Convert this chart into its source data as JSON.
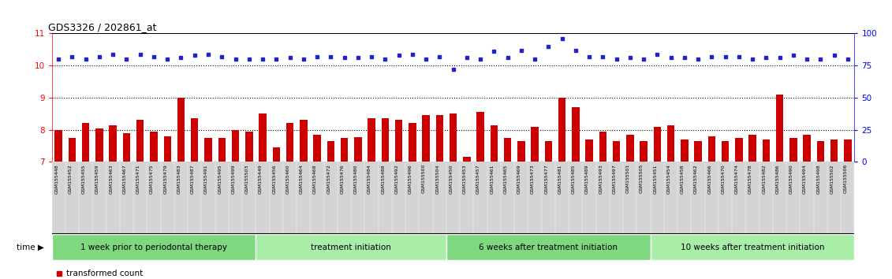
{
  "title": "GDS3326 / 202861_at",
  "gsm_labels": [
    "GSM155448",
    "GSM155452",
    "GSM155455",
    "GSM155459",
    "GSM155463",
    "GSM155467",
    "GSM155471",
    "GSM155475",
    "GSM155479",
    "GSM155483",
    "GSM155487",
    "GSM155491",
    "GSM155495",
    "GSM155499",
    "GSM155503",
    "GSM155449",
    "GSM155456",
    "GSM155460",
    "GSM155464",
    "GSM155468",
    "GSM155472",
    "GSM155476",
    "GSM155480",
    "GSM155484",
    "GSM155488",
    "GSM155492",
    "GSM155496",
    "GSM155500",
    "GSM155504",
    "GSM155450",
    "GSM155453",
    "GSM155457",
    "GSM155461",
    "GSM155465",
    "GSM155469",
    "GSM155473",
    "GSM155477",
    "GSM155481",
    "GSM155485",
    "GSM155489",
    "GSM155493",
    "GSM155497",
    "GSM155501",
    "GSM155505",
    "GSM155451",
    "GSM155454",
    "GSM155458",
    "GSM155462",
    "GSM155466",
    "GSM155470",
    "GSM155474",
    "GSM155478",
    "GSM155482",
    "GSM155486",
    "GSM155490",
    "GSM155494",
    "GSM155498",
    "GSM155502",
    "GSM155506"
  ],
  "bar_values": [
    8.0,
    7.75,
    8.2,
    8.05,
    8.15,
    7.9,
    8.3,
    7.95,
    7.8,
    9.0,
    8.35,
    7.75,
    7.75,
    8.0,
    7.95,
    8.5,
    7.45,
    8.2,
    8.3,
    7.85,
    7.65,
    7.75,
    7.78,
    8.35,
    8.35,
    8.3,
    8.2,
    8.45,
    8.45,
    8.5,
    7.15,
    8.55,
    8.15,
    7.75,
    7.65,
    8.1,
    7.65,
    9.0,
    8.7,
    7.7,
    7.95,
    7.65,
    7.85,
    7.65,
    8.1,
    8.15,
    7.7,
    7.65,
    7.8,
    7.65,
    7.75,
    7.85,
    7.7,
    9.1,
    7.75,
    7.85,
    7.65,
    7.7,
    7.7
  ],
  "percentile_values_pct": [
    80,
    82,
    80,
    82,
    84,
    80,
    84,
    82,
    80,
    81,
    83,
    84,
    82,
    80,
    80,
    80,
    80,
    81,
    80,
    82,
    82,
    81,
    81,
    82,
    80,
    83,
    84,
    80,
    82,
    72,
    81,
    80,
    86,
    81,
    87,
    80,
    90,
    96,
    87,
    82,
    82,
    80,
    81,
    80,
    84,
    81,
    81,
    80,
    82,
    82,
    82,
    80,
    81,
    81,
    83,
    80,
    80,
    83,
    80
  ],
  "group_boundaries": [
    0,
    15,
    29,
    44,
    59
  ],
  "group_labels": [
    "1 week prior to periodontal therapy",
    "treatment initiation",
    "6 weeks after treatment initiation",
    "10 weeks after treatment initiation"
  ],
  "group_colors": [
    "#7FD87F",
    "#A8EDA8",
    "#7FD87F",
    "#A8EDA8"
  ],
  "ylim": [
    7,
    11
  ],
  "yticks": [
    7,
    8,
    9,
    10,
    11
  ],
  "right_yticks": [
    0,
    25,
    50,
    75,
    100
  ],
  "bar_color": "#CC0000",
  "dot_color": "#2222CC",
  "xticklabel_bg": "#D8D8D8"
}
